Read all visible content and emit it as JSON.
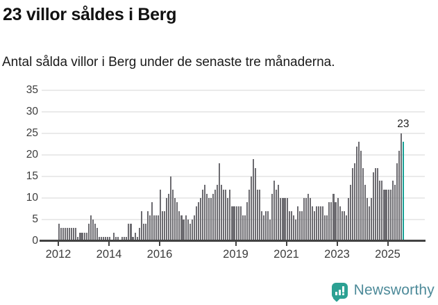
{
  "title": "23 villor såldes i Berg",
  "subtitle": "Antal sålda villor i Berg under de senaste tre månaderna.",
  "annotation": "23",
  "chart_data": {
    "type": "bar",
    "title": "23 villor såldes i Berg",
    "subtitle": "Antal sålda villor i Berg under de senaste tre månaderna.",
    "xlabel": "",
    "ylabel": "",
    "ylim": [
      0,
      35
    ],
    "yticks": [
      0,
      5,
      10,
      15,
      20,
      25,
      30,
      35
    ],
    "xtick_labels": [
      "2012",
      "2014",
      "2016",
      "2019",
      "2021",
      "2023",
      "2025"
    ],
    "start_year": 2012,
    "frequency": "monthly-rolling-3-month-sales",
    "grid": true,
    "legend_position": "none",
    "bar_color": "#6c6b70",
    "highlight_color": "#18a095",
    "highlight_last_bar": true,
    "highlight_value": 23,
    "values": [
      4,
      3,
      3,
      3,
      3,
      3,
      3,
      3,
      3,
      1,
      2,
      2,
      2,
      2,
      4,
      6,
      5,
      4,
      3,
      1,
      1,
      1,
      1,
      1,
      1,
      0,
      2,
      1,
      1,
      0,
      1,
      1,
      1,
      4,
      4,
      1,
      2,
      1,
      3,
      7,
      4,
      4,
      7,
      6,
      9,
      6,
      6,
      6,
      12,
      7,
      7,
      10,
      11,
      15,
      12,
      10,
      9,
      7,
      6,
      5,
      6,
      5,
      4,
      5,
      6,
      8,
      9,
      10,
      12,
      13,
      11,
      10,
      10,
      11,
      12,
      13,
      18,
      13,
      12,
      12,
      10,
      12,
      8,
      8,
      8,
      8,
      8,
      6,
      6,
      9,
      12,
      15,
      19,
      17,
      12,
      12,
      7,
      6,
      7,
      7,
      5,
      11,
      14,
      12,
      13,
      10,
      10,
      10,
      10,
      7,
      7,
      6,
      5,
      8,
      7,
      7,
      10,
      10,
      11,
      10,
      8,
      7,
      8,
      8,
      8,
      8,
      6,
      6,
      9,
      9,
      11,
      9,
      10,
      8,
      7,
      7,
      6,
      10,
      13,
      17,
      18,
      22,
      23,
      21,
      17,
      13,
      10,
      8,
      10,
      16,
      17,
      17,
      14,
      14,
      12,
      12,
      12,
      12,
      14,
      13,
      18,
      21,
      25,
      23
    ]
  },
  "logo": {
    "text": "Newsworthy",
    "icon": "bar-chart-speech-bubble",
    "icon_color": "#2ca193",
    "text_color": "#4d8a99"
  }
}
